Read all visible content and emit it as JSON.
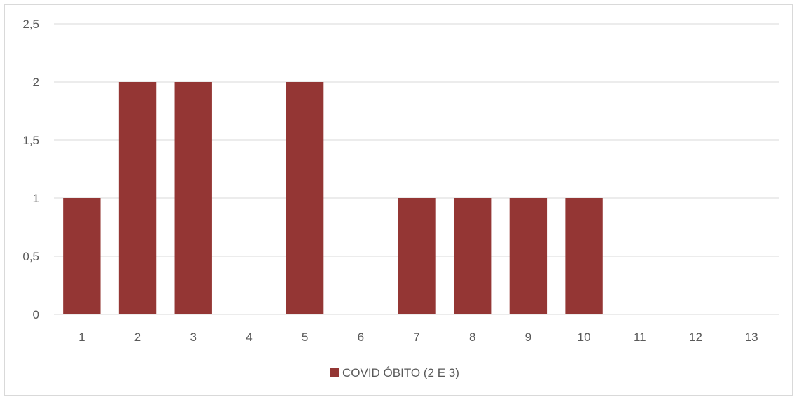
{
  "chart_data": {
    "type": "bar",
    "categories": [
      "1",
      "2",
      "3",
      "4",
      "5",
      "6",
      "7",
      "8",
      "9",
      "10",
      "11",
      "12",
      "13"
    ],
    "series": [
      {
        "name": "COVID ÓBITO (2 E 3)",
        "values": [
          1,
          2,
          2,
          0,
          2,
          0,
          1,
          1,
          1,
          1,
          0,
          0,
          0
        ],
        "color": "#943634"
      }
    ],
    "yticks": [
      "0",
      "0,5",
      "1",
      "1,5",
      "2",
      "2,5"
    ],
    "ytick_values": [
      0,
      0.5,
      1,
      1.5,
      2,
      2.5
    ],
    "ylim": [
      0,
      2.5
    ],
    "grid": true,
    "legend_position": "bottom",
    "colors": {
      "grid": "#d9d9d9",
      "text": "#595959",
      "bar": "#943634"
    }
  }
}
